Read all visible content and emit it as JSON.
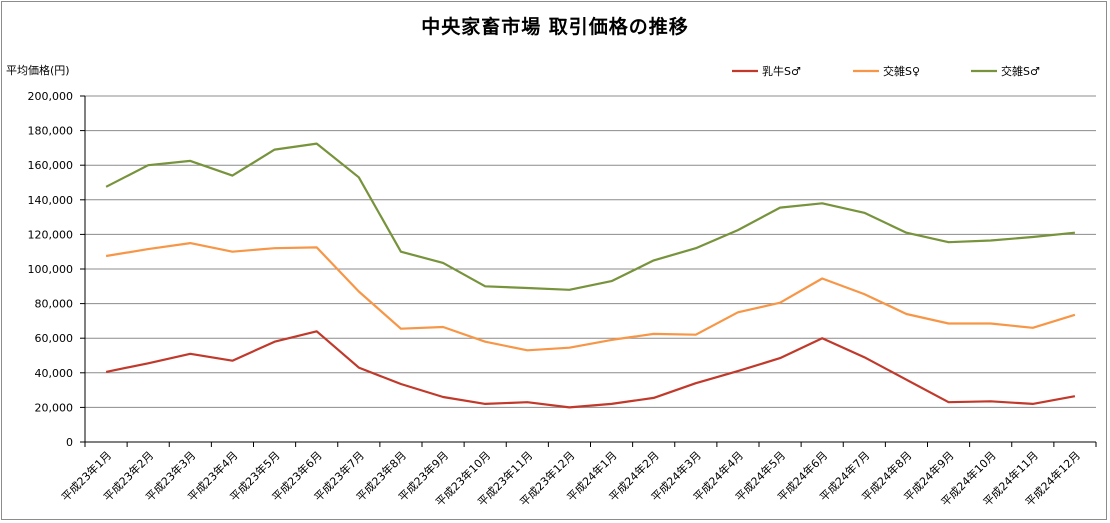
{
  "chart_data": {
    "type": "line",
    "title": "中央家畜市場 取引価格の推移",
    "ylabel": "平均価格(円)",
    "xlabel": "",
    "ylim": [
      0,
      200000
    ],
    "y_ticks": [
      "0",
      "20,000",
      "40,000",
      "60,000",
      "80,000",
      "100,000",
      "120,000",
      "140,000",
      "160,000",
      "180,000",
      "200,000"
    ],
    "grid": true,
    "legend_position": "top-right",
    "categories": [
      "平成23年1月",
      "平成23年2月",
      "平成23年3月",
      "平成23年4月",
      "平成23年5月",
      "平成23年6月",
      "平成23年7月",
      "平成23年8月",
      "平成23年9月",
      "平成23年10月",
      "平成23年11月",
      "平成23年12月",
      "平成24年1月",
      "平成24年2月",
      "平成24年3月",
      "平成24年4月",
      "平成24年5月",
      "平成24年6月",
      "平成24年7月",
      "平成24年8月",
      "平成24年9月",
      "平成24年10月",
      "平成24年11月",
      "平成24年12月"
    ],
    "series": [
      {
        "name": "乳牛S♂",
        "color": "#c0392b",
        "values": [
          40500,
          45500,
          51000,
          47000,
          58000,
          64000,
          43000,
          33500,
          26000,
          22000,
          23000,
          20000,
          22000,
          25500,
          34000,
          41000,
          48500,
          60000,
          49000,
          36000,
          23000,
          23500,
          22000,
          26500
        ]
      },
      {
        "name": "交雑S♀",
        "color": "#f79646",
        "values": [
          107500,
          111500,
          115000,
          110000,
          112000,
          112500,
          87000,
          65500,
          66500,
          58000,
          53000,
          54500,
          59000,
          62500,
          62000,
          75000,
          80500,
          94500,
          85500,
          74000,
          68500,
          68500,
          66000,
          73500
        ]
      },
      {
        "name": "交雑S♂",
        "color": "#77933c",
        "values": [
          147500,
          160000,
          162500,
          154000,
          169000,
          172500,
          153000,
          110000,
          103500,
          90000,
          89000,
          88000,
          93000,
          105000,
          112000,
          122500,
          135500,
          138000,
          132500,
          121000,
          115500,
          116500,
          118500,
          121000
        ]
      }
    ]
  }
}
